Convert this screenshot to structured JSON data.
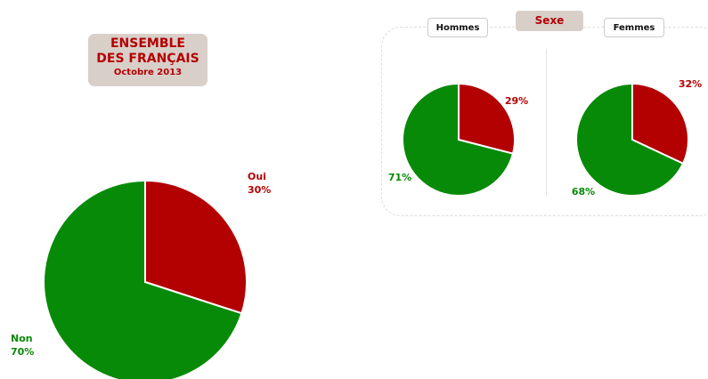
{
  "panel": {
    "title": "Sexe"
  },
  "chart_data": [
    {
      "type": "pie",
      "title": "ENSEMBLE DES FRANÇAIS",
      "subtitle": "Octobre 2013",
      "categories": [
        "Oui",
        "Non"
      ],
      "values": [
        30,
        70
      ],
      "value_labels": [
        "30%",
        "70%"
      ],
      "colors": [
        "#b30000",
        "#078a07"
      ]
    },
    {
      "type": "pie",
      "title": "Hommes",
      "values": [
        29,
        71
      ],
      "value_labels": [
        "29%",
        "71%"
      ],
      "colors": [
        "#b30000",
        "#078a07"
      ]
    },
    {
      "type": "pie",
      "title": "Femmes",
      "values": [
        32,
        68
      ],
      "value_labels": [
        "32%",
        "68%"
      ],
      "colors": [
        "#b30000",
        "#078a07"
      ]
    }
  ]
}
